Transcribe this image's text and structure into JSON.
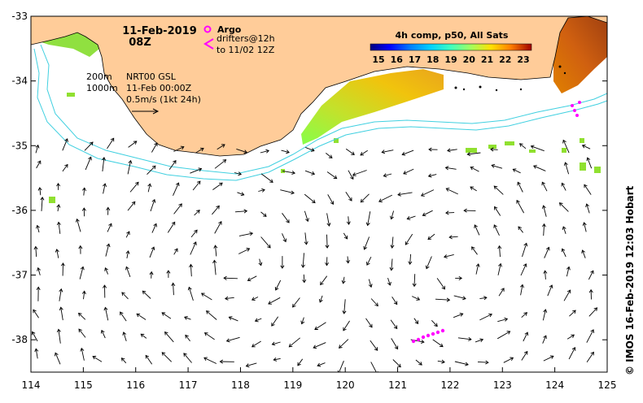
{
  "map": {
    "title_date": "11-Feb-2019",
    "title_time": "08Z",
    "legend": {
      "argo_label": "Argo",
      "drifters_label": "drifters@12h",
      "drifters_range": "to 11/02 12Z",
      "argo_color": "#ff00ff"
    },
    "colorbar": {
      "title": "4h comp, p50, All Sats",
      "ticks": [
        "15",
        "16",
        "17",
        "18",
        "19",
        "20",
        "21",
        "22",
        "23"
      ],
      "colors": [
        "#00007f",
        "#0000ff",
        "#0080ff",
        "#00d0ff",
        "#40ffbf",
        "#a0ff60",
        "#ffe000",
        "#ff8000",
        "#ff2000",
        "#a00000"
      ]
    },
    "isobaths": {
      "label_200": "200m",
      "label_1000": "1000m",
      "color": "#40d0e0"
    },
    "info": {
      "product": "NRT00 GSL",
      "date": "11-Feb 00:00Z",
      "scale": "0.5m/s (1kt 24h)"
    },
    "credit": "© IMOS 16-Feb-2019 12:03 Hobart",
    "land_color": "#ffcc99",
    "axes": {
      "lon_labels": [
        "114",
        "115",
        "116",
        "117",
        "118",
        "119",
        "120",
        "121",
        "122",
        "123",
        "124",
        "125"
      ],
      "lat_labels": [
        "-33",
        "-34",
        "-35",
        "-36",
        "-37",
        "-38"
      ],
      "lon_range": [
        114,
        125
      ],
      "lat_range": [
        -38.5,
        -33
      ]
    }
  }
}
